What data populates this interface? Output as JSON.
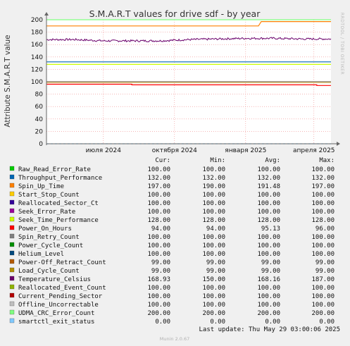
{
  "side_text": "RRDTOOL / TOBI OETIKER",
  "footer": {
    "last_update": "Last update: Thu May 29 03:00:06 2025",
    "munin": "Munin 2.0.67"
  },
  "legend_headers": {
    "cur": "Cur:",
    "min": "Min:",
    "avg": "Avg:",
    "max": "Max:"
  },
  "chart_data": {
    "type": "line",
    "title": "S.M.A.R.T values for drive sdf - by year",
    "ylabel": "Attribute S.M.A.R.T value",
    "xlabel": "",
    "ylim": [
      0,
      200
    ],
    "y_ticks": [
      0,
      20,
      40,
      60,
      80,
      100,
      120,
      140,
      160,
      180,
      200
    ],
    "grid": true,
    "x_ticks": [
      {
        "label": "июля 2024",
        "pos": 0.2
      },
      {
        "label": "октября 2024",
        "pos": 0.45
      },
      {
        "label": "января 2025",
        "pos": 0.7
      },
      {
        "label": "апреля 2025",
        "pos": 0.94
      }
    ],
    "series": [
      {
        "name": "Raw_Read_Error_Rate",
        "color": "#00cc00",
        "cur": "100.00",
        "min": "100.00",
        "avg": "100.00",
        "max": "100.00",
        "points": [
          [
            0,
            100
          ],
          [
            1,
            100
          ]
        ]
      },
      {
        "name": "Throughput_Performance",
        "color": "#0066b3",
        "cur": "132.00",
        "min": "132.00",
        "avg": "132.00",
        "max": "132.00",
        "points": [
          [
            0,
            132
          ],
          [
            1,
            132
          ]
        ]
      },
      {
        "name": "Spin_Up_Time",
        "color": "#ff8000",
        "cur": "197.00",
        "min": "190.00",
        "avg": "191.48",
        "max": "197.00",
        "points": [
          [
            0,
            190
          ],
          [
            0.745,
            190
          ],
          [
            0.755,
            197
          ],
          [
            1,
            197
          ]
        ]
      },
      {
        "name": "Start_Stop_Count",
        "color": "#ffcc00",
        "cur": "100.00",
        "min": "100.00",
        "avg": "100.00",
        "max": "100.00",
        "points": [
          [
            0,
            100
          ],
          [
            1,
            100
          ]
        ]
      },
      {
        "name": "Reallocated_Sector_Ct",
        "color": "#330099",
        "cur": "100.00",
        "min": "100.00",
        "avg": "100.00",
        "max": "100.00",
        "points": [
          [
            0,
            100
          ],
          [
            1,
            100
          ]
        ]
      },
      {
        "name": "Seek_Error_Rate",
        "color": "#990099",
        "cur": "100.00",
        "min": "100.00",
        "avg": "100.00",
        "max": "100.00",
        "points": [
          [
            0,
            100
          ],
          [
            1,
            100
          ]
        ]
      },
      {
        "name": "Seek_Time_Performance",
        "color": "#ccff00",
        "cur": "128.00",
        "min": "128.00",
        "avg": "128.00",
        "max": "128.00",
        "points": [
          [
            0,
            128
          ],
          [
            1,
            128
          ]
        ]
      },
      {
        "name": "Power_On_Hours",
        "color": "#ff0000",
        "cur": "94.00",
        "min": "94.00",
        "avg": "95.13",
        "max": "96.00",
        "points": [
          [
            0,
            96
          ],
          [
            0.3,
            96
          ],
          [
            0.3,
            95
          ],
          [
            0.95,
            95
          ],
          [
            0.95,
            94
          ],
          [
            1,
            94
          ]
        ]
      },
      {
        "name": "Spin_Retry_Count",
        "color": "#808080",
        "cur": "100.00",
        "min": "100.00",
        "avg": "100.00",
        "max": "100.00",
        "points": [
          [
            0,
            100
          ],
          [
            1,
            100
          ]
        ]
      },
      {
        "name": "Power_Cycle_Count",
        "color": "#008f00",
        "cur": "100.00",
        "min": "100.00",
        "avg": "100.00",
        "max": "100.00",
        "points": [
          [
            0,
            100
          ],
          [
            1,
            100
          ]
        ]
      },
      {
        "name": "Helium_Level",
        "color": "#00487d",
        "cur": "100.00",
        "min": "100.00",
        "avg": "100.00",
        "max": "100.00",
        "points": [
          [
            0,
            100
          ],
          [
            1,
            100
          ]
        ]
      },
      {
        "name": "Power-Off_Retract_Count",
        "color": "#b35a00",
        "cur": "99.00",
        "min": "99.00",
        "avg": "99.00",
        "max": "99.00",
        "points": [
          [
            0,
            99
          ],
          [
            1,
            99
          ]
        ]
      },
      {
        "name": "Load_Cycle_Count",
        "color": "#b38f00",
        "cur": "99.00",
        "min": "99.00",
        "avg": "99.00",
        "max": "99.00",
        "points": [
          [
            0,
            99
          ],
          [
            1,
            99
          ]
        ]
      },
      {
        "name": "Temperature_Celsius",
        "color": "#6b006b",
        "cur": "168.93",
        "min": "150.00",
        "avg": "168.16",
        "max": "187.00",
        "noisy": true,
        "points": [
          [
            0,
            168
          ],
          [
            0.1,
            168
          ],
          [
            0.2,
            166
          ],
          [
            0.3,
            166
          ],
          [
            0.4,
            166
          ],
          [
            0.5,
            168
          ],
          [
            0.6,
            169
          ],
          [
            0.7,
            170
          ],
          [
            0.8,
            170
          ],
          [
            0.9,
            169
          ],
          [
            1,
            169
          ]
        ]
      },
      {
        "name": "Reallocated_Event_Count",
        "color": "#8fb300",
        "cur": "100.00",
        "min": "100.00",
        "avg": "100.00",
        "max": "100.00",
        "points": [
          [
            0,
            100
          ],
          [
            1,
            100
          ]
        ]
      },
      {
        "name": "Current_Pending_Sector",
        "color": "#b30000",
        "cur": "100.00",
        "min": "100.00",
        "avg": "100.00",
        "max": "100.00",
        "points": [
          [
            0,
            100
          ],
          [
            1,
            100
          ]
        ]
      },
      {
        "name": "Offline_Uncorrectable",
        "color": "#bebebe",
        "cur": "100.00",
        "min": "100.00",
        "avg": "100.00",
        "max": "100.00",
        "points": [
          [
            0,
            100
          ],
          [
            1,
            100
          ]
        ]
      },
      {
        "name": "UDMA_CRC_Error_Count",
        "color": "#80ff80",
        "cur": "200.00",
        "min": "200.00",
        "avg": "200.00",
        "max": "200.00",
        "points": [
          [
            0,
            200
          ],
          [
            1,
            200
          ]
        ]
      },
      {
        "name": "smartctl_exit_status",
        "color": "#80c9ff",
        "cur": "0.00",
        "min": "0.00",
        "avg": "0.00",
        "max": "0.00",
        "dashed": true,
        "points": [
          [
            0,
            0
          ],
          [
            1,
            0
          ]
        ]
      }
    ]
  }
}
